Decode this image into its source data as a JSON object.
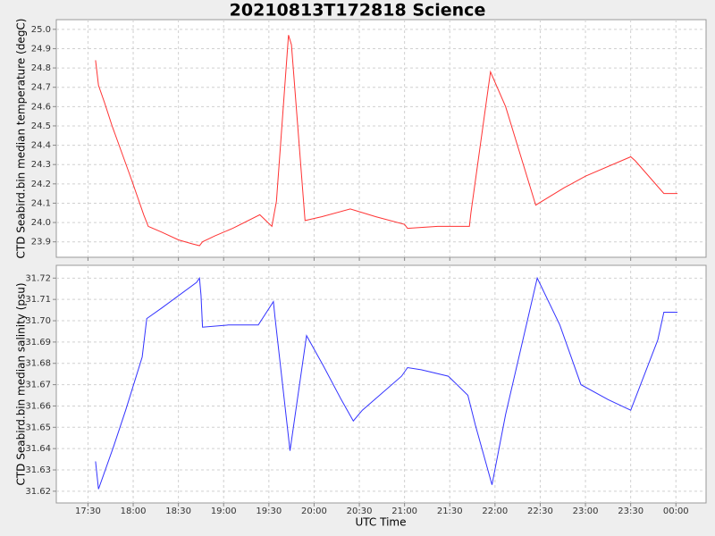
{
  "chart_data": [
    {
      "type": "line",
      "title": "20210813T172818 Science",
      "ylabel": "CTD Seabird.bin median temperature (degC)",
      "x": [
        "17:35",
        "17:37",
        "17:41",
        "17:46",
        "17:59",
        "18:07",
        "18:10",
        "18:19",
        "18:30",
        "18:39",
        "18:44",
        "18:46",
        "18:54",
        "19:06",
        "19:24",
        "19:32",
        "19:35",
        "19:43",
        "19:45",
        "19:54",
        "20:05",
        "20:24",
        "20:41",
        "21:00",
        "21:02",
        "21:22",
        "21:43",
        "21:44",
        "21:52",
        "21:57",
        "22:07",
        "22:27",
        "22:46",
        "23:00",
        "23:30",
        "23:33",
        "23:52",
        "00:01"
      ],
      "series": [
        {
          "color": "#ff3333",
          "values": [
            24.84,
            24.71,
            24.62,
            24.5,
            24.22,
            24.04,
            23.98,
            23.95,
            23.91,
            23.89,
            23.88,
            23.9,
            23.93,
            23.97,
            24.04,
            23.98,
            24.11,
            24.97,
            24.92,
            24.01,
            24.03,
            24.07,
            24.03,
            23.99,
            23.97,
            23.98,
            23.98,
            24.05,
            24.5,
            24.78,
            24.6,
            24.09,
            24.18,
            24.24,
            24.34,
            24.32,
            24.15,
            24.15
          ]
        }
      ],
      "xlim": [
        "17:09",
        "00:20"
      ],
      "xticks": [
        "17:30",
        "18:00",
        "18:30",
        "19:00",
        "19:30",
        "20:00",
        "20:30",
        "21:00",
        "21:30",
        "22:00",
        "22:30",
        "23:00",
        "23:30",
        "00:00"
      ],
      "ylim": [
        23.82,
        25.05
      ],
      "yticks": [
        23.9,
        {
          "value": 24.0,
          "label": "24.0"
        },
        24.1,
        24.2,
        24.3,
        24.4,
        24.5,
        24.6,
        24.7,
        24.8,
        24.9,
        {
          "value": 25.0,
          "label": "25.0"
        }
      ],
      "grid": true
    },
    {
      "type": "line",
      "xlabel": "UTC Time",
      "ylabel": "CTD Seabird.bin median salinity (psu)",
      "x": [
        "17:35",
        "17:37",
        "17:40",
        "17:47",
        "17:55",
        "18:06",
        "18:09",
        "18:19",
        "18:42",
        "18:44",
        "18:45",
        "18:46",
        "19:03",
        "19:23",
        "19:33",
        "19:34",
        "19:44",
        "19:55",
        "20:06",
        "20:18",
        "20:26",
        "20:32",
        "20:58",
        "21:02",
        "21:11",
        "21:29",
        "21:42",
        "21:47",
        "21:58",
        "22:07",
        "22:28",
        "22:43",
        "22:57",
        "23:15",
        "23:30",
        "23:48",
        "23:52",
        "00:01"
      ],
      "series": [
        {
          "color": "#3333ff",
          "values": [
            31.634,
            31.621,
            31.627,
            31.641,
            31.658,
            31.683,
            31.701,
            31.706,
            31.718,
            31.72,
            31.712,
            31.697,
            31.698,
            31.698,
            31.709,
            31.702,
            31.639,
            31.693,
            31.679,
            31.663,
            31.653,
            31.658,
            31.674,
            31.678,
            31.677,
            31.674,
            31.665,
            31.651,
            31.623,
            31.656,
            31.72,
            31.698,
            31.67,
            31.663,
            31.658,
            31.691,
            31.704,
            31.704
          ]
        }
      ],
      "xlim": [
        "17:09",
        "00:20"
      ],
      "xticks": [
        "17:30",
        "18:00",
        "18:30",
        "19:00",
        "19:30",
        "20:00",
        "20:30",
        "21:00",
        "21:30",
        "22:00",
        "22:30",
        "23:00",
        "23:30",
        "00:00"
      ],
      "ylim": [
        31.6145,
        31.726
      ],
      "yticks": [
        31.62,
        31.63,
        31.64,
        31.65,
        31.66,
        31.67,
        31.68,
        31.69,
        {
          "value": 31.7,
          "label": "31.70"
        },
        31.71,
        31.72
      ],
      "grid": true
    }
  ]
}
